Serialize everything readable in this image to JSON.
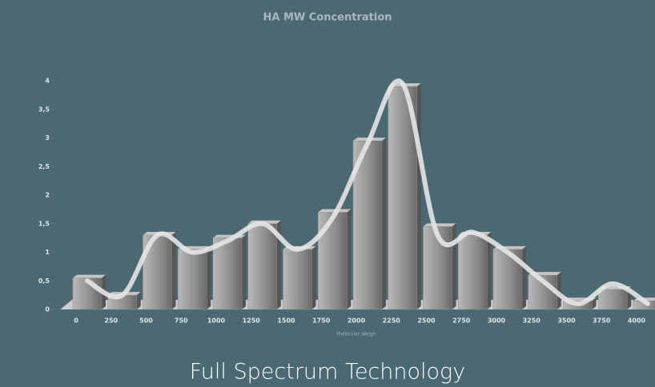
{
  "chart_data": {
    "type": "bar",
    "title": "HA MW Concentration",
    "x_label": "Molecular Weigh",
    "footer": "Full Spectrum Technology",
    "categories": [
      0,
      250,
      500,
      750,
      1000,
      1250,
      1500,
      1750,
      2000,
      2250,
      2500,
      2750,
      3000,
      3250,
      3500,
      3750,
      4000
    ],
    "series": [
      {
        "type": "bar",
        "color": "#8e8e8e",
        "values": [
          0.55,
          0.25,
          1.3,
          1.05,
          1.25,
          1.5,
          1.05,
          1.7,
          2.95,
          3.9,
          1.45,
          1.3,
          1.05,
          0.6,
          0.15,
          0.35,
          0.15
        ]
      },
      {
        "type": "line",
        "color": "#e6e6e6",
        "values": [
          0.5,
          0.25,
          1.3,
          1.0,
          1.2,
          1.5,
          1.05,
          1.6,
          2.9,
          3.95,
          1.3,
          1.35,
          1.0,
          0.5,
          0.1,
          0.45,
          0.1
        ]
      }
    ],
    "ylim": [
      0,
      4
    ],
    "yticks": [
      0,
      {
        "value": 0.5,
        "label": "0,5"
      },
      1,
      {
        "value": 1.5,
        "label": "1,5"
      },
      2,
      {
        "value": 2.5,
        "label": "2,5"
      },
      3,
      {
        "value": 3.5,
        "label": "3,5"
      },
      4
    ]
  }
}
